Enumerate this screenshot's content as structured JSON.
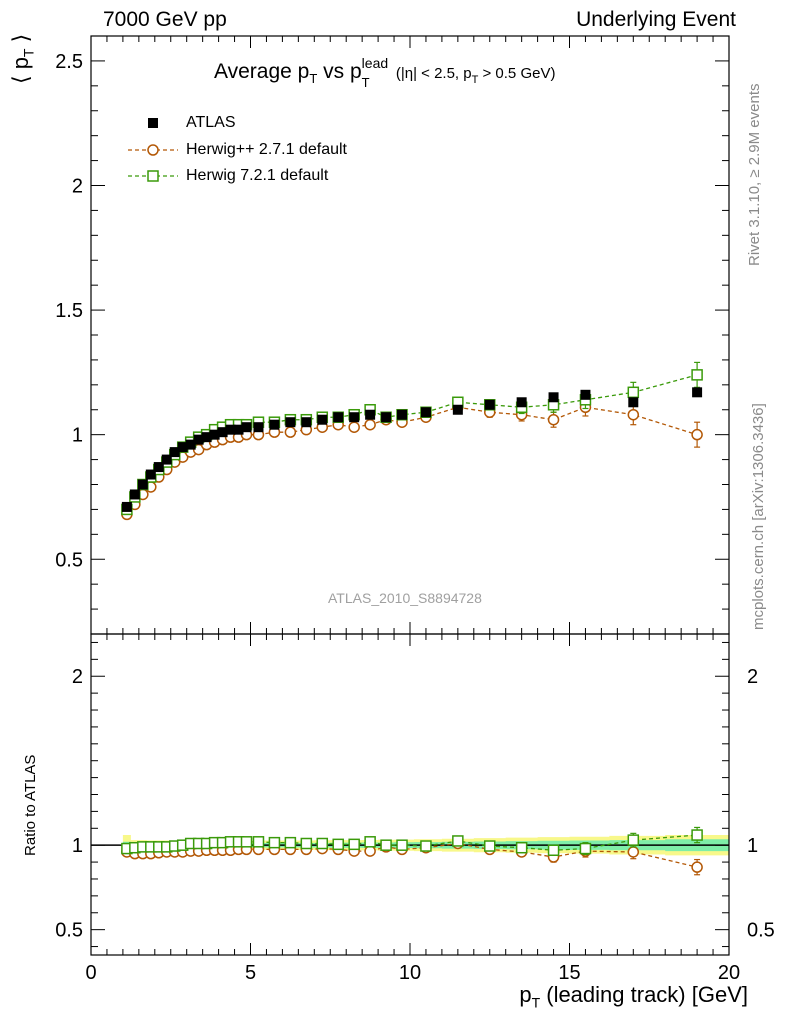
{
  "header": {
    "left": "7000 GeV pp",
    "right": "Underlying Event"
  },
  "side": {
    "rivet": "Rivet 3.1.10, ≥ 2.9M events",
    "mcplots": "mcplots.cern.ch [arXiv:1306.3436]"
  },
  "colors": {
    "atlas": "#000000",
    "herwigpp": "#b35806",
    "herwig7": "#3a9a0a",
    "band_inner": "#7eeea8",
    "band_outer": "#f8f88a"
  },
  "chart_data": [
    {
      "type": "scatter",
      "title": "Average pT vs pT lead (|η| < 2.5, pT > 0.5 GeV)",
      "title_parts": {
        "main": "Average p",
        "sub1": "T",
        "vs": " vs p",
        "sup": "lead",
        "sub2": "T",
        "cond_open": " (|η| < 2.5, p",
        "cond_sub": "T",
        "cond_close": " > 0.5 GeV)"
      },
      "ylabel": "⟨ pT ⟩",
      "ylabel_parts": {
        "open": "⟨ p",
        "sub": "T",
        "close": " ⟩"
      },
      "xlim": [
        0,
        20
      ],
      "ylim": [
        0.2,
        2.6
      ],
      "yticks": [
        0.5,
        1,
        1.5,
        2,
        2.5
      ],
      "ytick_labels": [
        "0.5",
        "1",
        "1.5",
        "2",
        "2.5"
      ],
      "watermark": "ATLAS_2010_S8894728",
      "legend": [
        "ATLAS",
        "Herwig++ 2.7.1 default",
        "Herwig 7.2.1 default"
      ],
      "x": [
        1.125,
        1.375,
        1.625,
        1.875,
        2.125,
        2.375,
        2.625,
        2.875,
        3.125,
        3.375,
        3.625,
        3.875,
        4.125,
        4.375,
        4.625,
        4.875,
        5.25,
        5.75,
        6.25,
        6.75,
        7.25,
        7.75,
        8.25,
        8.75,
        9.25,
        9.75,
        10.5,
        11.5,
        12.5,
        13.5,
        14.5,
        15.5,
        17.0,
        19.0
      ],
      "series": [
        {
          "name": "ATLAS",
          "marker": "filled-square",
          "values": [
            0.71,
            0.76,
            0.8,
            0.84,
            0.87,
            0.9,
            0.93,
            0.95,
            0.96,
            0.98,
            0.99,
            1.0,
            1.01,
            1.02,
            1.02,
            1.03,
            1.03,
            1.04,
            1.05,
            1.05,
            1.06,
            1.07,
            1.07,
            1.08,
            1.07,
            1.08,
            1.09,
            1.1,
            1.12,
            1.13,
            1.15,
            1.16,
            1.13,
            1.17
          ]
        },
        {
          "name": "Herwig++ 2.7.1 default",
          "marker": "open-circle",
          "values": [
            0.68,
            0.72,
            0.76,
            0.79,
            0.83,
            0.86,
            0.89,
            0.91,
            0.93,
            0.94,
            0.96,
            0.97,
            0.98,
            0.99,
            0.99,
            1.0,
            1.0,
            1.01,
            1.01,
            1.02,
            1.03,
            1.04,
            1.03,
            1.04,
            1.06,
            1.05,
            1.07,
            1.11,
            1.09,
            1.08,
            1.06,
            1.11,
            1.08,
            1.0
          ],
          "errors": [
            0.005,
            0.005,
            0.005,
            0.005,
            0.005,
            0.005,
            0.005,
            0.005,
            0.005,
            0.005,
            0.005,
            0.005,
            0.005,
            0.005,
            0.005,
            0.005,
            0.005,
            0.005,
            0.006,
            0.006,
            0.007,
            0.008,
            0.009,
            0.01,
            0.011,
            0.012,
            0.014,
            0.018,
            0.02,
            0.025,
            0.03,
            0.035,
            0.04,
            0.05
          ]
        },
        {
          "name": "Herwig 7.2.1 default",
          "marker": "open-square",
          "values": [
            0.7,
            0.75,
            0.8,
            0.83,
            0.86,
            0.89,
            0.92,
            0.95,
            0.97,
            0.99,
            1.0,
            1.02,
            1.03,
            1.04,
            1.04,
            1.04,
            1.05,
            1.05,
            1.06,
            1.06,
            1.07,
            1.07,
            1.08,
            1.1,
            1.07,
            1.08,
            1.09,
            1.13,
            1.12,
            1.11,
            1.12,
            1.14,
            1.17,
            1.24
          ],
          "errors": [
            0.005,
            0.005,
            0.005,
            0.005,
            0.005,
            0.005,
            0.005,
            0.005,
            0.005,
            0.005,
            0.005,
            0.005,
            0.005,
            0.005,
            0.005,
            0.005,
            0.005,
            0.005,
            0.006,
            0.006,
            0.007,
            0.008,
            0.009,
            0.01,
            0.011,
            0.012,
            0.014,
            0.018,
            0.02,
            0.025,
            0.03,
            0.035,
            0.04,
            0.05
          ]
        }
      ]
    },
    {
      "type": "scatter",
      "title": "",
      "ylabel": "Ratio to ATLAS",
      "xlabel": "pT (leading track) [GeV]",
      "xlabel_parts": {
        "p": "p",
        "sub": "T",
        "rest": " (leading track) [GeV]"
      },
      "xlim": [
        0,
        20
      ],
      "ylim": [
        0.35,
        2.25
      ],
      "xticks": [
        0,
        5,
        10,
        15,
        20
      ],
      "xtick_labels": [
        "0",
        "5",
        "10",
        "15",
        "20"
      ],
      "yticks": [
        0.5,
        1,
        2
      ],
      "ytick_labels": [
        "0.5",
        "1",
        "2"
      ],
      "band_inner_halfwidth": [
        0.02,
        0.015,
        0.014,
        0.013,
        0.013,
        0.013,
        0.013,
        0.013,
        0.013,
        0.013,
        0.013,
        0.013,
        0.013,
        0.013,
        0.013,
        0.013,
        0.013,
        0.013,
        0.013,
        0.014,
        0.014,
        0.015,
        0.015,
        0.016,
        0.016,
        0.017,
        0.018,
        0.02,
        0.022,
        0.024,
        0.026,
        0.028,
        0.03,
        0.035
      ],
      "band_outer_halfwidth": [
        0.06,
        0.03,
        0.03,
        0.028,
        0.028,
        0.028,
        0.028,
        0.028,
        0.028,
        0.028,
        0.028,
        0.028,
        0.028,
        0.028,
        0.028,
        0.028,
        0.028,
        0.028,
        0.028,
        0.028,
        0.029,
        0.03,
        0.03,
        0.031,
        0.032,
        0.033,
        0.035,
        0.038,
        0.042,
        0.045,
        0.048,
        0.05,
        0.055,
        0.06
      ],
      "series": [
        {
          "name": "Herwig++ 2.7.1 default / ATLAS",
          "marker": "open-circle",
          "values": [
            0.96,
            0.95,
            0.95,
            0.95,
            0.955,
            0.96,
            0.96,
            0.96,
            0.965,
            0.965,
            0.97,
            0.97,
            0.97,
            0.97,
            0.975,
            0.975,
            0.975,
            0.975,
            0.975,
            0.975,
            0.98,
            0.975,
            0.965,
            0.965,
            0.99,
            0.975,
            0.985,
            1.01,
            0.975,
            0.96,
            0.93,
            0.965,
            0.96,
            0.87
          ],
          "errors": [
            0.005,
            0.005,
            0.005,
            0.005,
            0.005,
            0.005,
            0.005,
            0.005,
            0.005,
            0.005,
            0.005,
            0.005,
            0.005,
            0.005,
            0.005,
            0.005,
            0.005,
            0.005,
            0.006,
            0.006,
            0.007,
            0.008,
            0.009,
            0.01,
            0.011,
            0.012,
            0.014,
            0.018,
            0.02,
            0.025,
            0.03,
            0.035,
            0.04,
            0.045
          ]
        },
        {
          "name": "Herwig 7.2.1 default / ATLAS",
          "marker": "open-square",
          "values": [
            0.98,
            0.985,
            0.99,
            0.99,
            0.99,
            0.99,
            0.995,
            1.0,
            1.01,
            1.01,
            1.01,
            1.015,
            1.015,
            1.02,
            1.02,
            1.02,
            1.02,
            1.015,
            1.015,
            1.01,
            1.01,
            1.005,
            1.005,
            1.02,
            1.0,
            1.0,
            0.995,
            1.025,
            0.995,
            0.985,
            0.97,
            0.98,
            1.03,
            1.06
          ],
          "errors": [
            0.005,
            0.005,
            0.005,
            0.005,
            0.005,
            0.005,
            0.005,
            0.005,
            0.005,
            0.005,
            0.005,
            0.005,
            0.005,
            0.005,
            0.005,
            0.005,
            0.005,
            0.005,
            0.006,
            0.006,
            0.007,
            0.008,
            0.009,
            0.01,
            0.011,
            0.012,
            0.014,
            0.018,
            0.02,
            0.025,
            0.03,
            0.035,
            0.04,
            0.045
          ]
        }
      ]
    }
  ]
}
